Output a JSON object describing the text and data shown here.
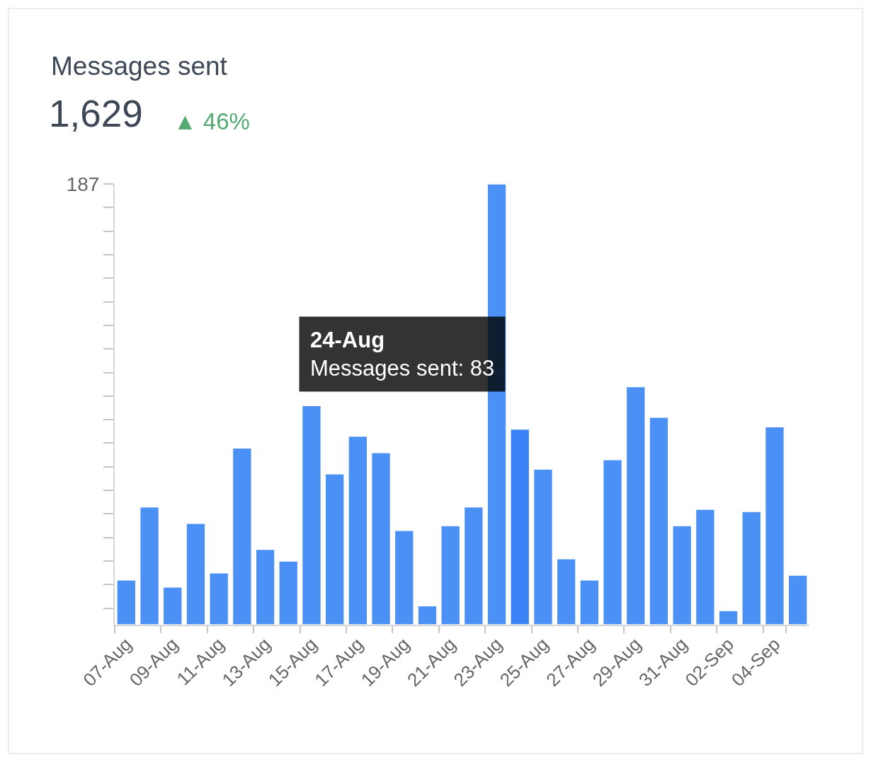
{
  "chart_data": {
    "type": "bar",
    "title": "Messages sent",
    "subtitle": "1,629",
    "annotations": [
      "▲ 46%",
      "24-Aug\nMessages sent: 83"
    ],
    "categories": [
      "07-Aug",
      null,
      "09-Aug",
      null,
      "11-Aug",
      null,
      "13-Aug",
      null,
      "15-Aug",
      null,
      "17-Aug",
      null,
      "19-Aug",
      null,
      "21-Aug",
      null,
      "23-Aug",
      null,
      "25-Aug",
      null,
      "27-Aug",
      null,
      "29-Aug",
      null,
      "31-Aug",
      null,
      "02-Sep",
      null,
      "04-Sep",
      null
    ],
    "values": [
      19,
      50,
      16,
      43,
      22,
      75,
      32,
      27,
      93,
      64,
      80,
      73,
      40,
      8,
      42,
      50,
      187,
      83,
      66,
      28,
      19,
      70,
      101,
      88,
      42,
      49,
      6,
      48,
      84,
      21
    ],
    "colors": [
      "#4a90f5",
      "#4a90f5",
      "#4a90f5",
      "#4a90f5",
      "#4a90f5",
      "#4a90f5",
      "#4a90f5",
      "#4a90f5",
      "#4a90f5",
      "#4a90f5",
      "#4a90f5",
      "#4a90f5",
      "#4a90f5",
      "#4a90f5",
      "#4a90f5",
      "#4a90f5",
      "#4a90f5",
      "#3b82f6",
      "#4a90f5",
      "#4a90f5",
      "#4a90f5",
      "#4a90f5",
      "#4a90f5",
      "#4a90f5",
      "#4a90f5",
      "#4a90f5",
      "#4a90f5",
      "#4a90f5",
      "#4a90f5",
      "#4a90f5"
    ],
    "ylim": [
      0,
      187
    ],
    "yticks": [
      {
        "value": 7,
        "label": null
      },
      {
        "value": 17,
        "label": null
      },
      {
        "value": 27,
        "label": null
      },
      {
        "value": 37,
        "label": null
      },
      {
        "value": 47,
        "label": null
      },
      {
        "value": 57,
        "label": null
      },
      {
        "value": 67,
        "label": null
      },
      {
        "value": 77,
        "label": null
      },
      {
        "value": 87,
        "label": null
      },
      {
        "value": 97,
        "label": null
      },
      {
        "value": 107,
        "label": null
      },
      {
        "value": 117,
        "label": null
      },
      {
        "value": 127,
        "label": null
      },
      {
        "value": 137,
        "label": null
      },
      {
        "value": 147,
        "label": null
      },
      {
        "value": 157,
        "label": null
      },
      {
        "value": 167,
        "label": null
      },
      {
        "value": 177,
        "label": null
      },
      187
    ],
    "grid": false
  }
}
